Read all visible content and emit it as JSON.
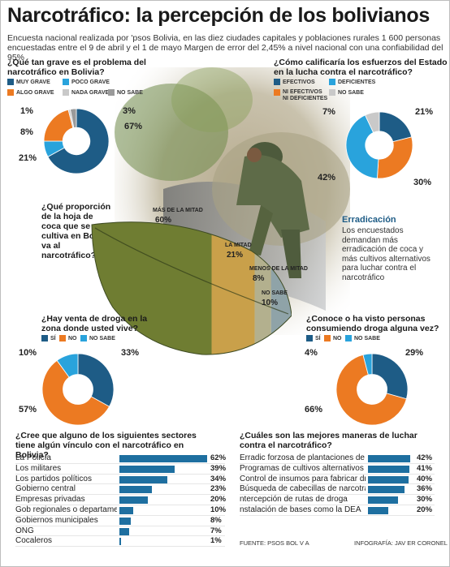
{
  "header": {
    "title": "Narcotráfico: la percepción de los bolivianos",
    "subtitle": "Encuesta nacional realizada por 'psos Bolivia, en las diez ciudades capitales y poblaciones rurales 1 600 personas encuestadas entre el 9 de abril y el 1 de mayo  Margen de error del 2,45% a nivel nacional con una confiabilidad del 95%"
  },
  "colors": {
    "dark_blue": "#1e5c86",
    "light_blue": "#29a3dc",
    "orange": "#ec7a22",
    "light_gray": "#c9c9c9",
    "gray": "#9a9a9a",
    "bar_blue": "#1e6fa0"
  },
  "pie_gravity": {
    "question": "¿Qué tan grave es el problema del narcotráfico en Bolivia?",
    "legend": [
      "MUY GRAVE",
      "POCO GRAVE",
      "ALGO GRAVE",
      "NADA GRAVE",
      "NO SABE"
    ],
    "labels": [
      "67%",
      "8%",
      "21%",
      "1%",
      "3%"
    ]
  },
  "pie_efforts": {
    "question": "¿Cómo calificaría los esfuerzos del Estado en la lucha contra el narcotráfico?",
    "legend": [
      "EFECTIVOS",
      "DEFICIENTES",
      "NI EFECTIVOS NI DEFICIENTES",
      "NO SABE"
    ],
    "labels": [
      "21%",
      "42%",
      "30%",
      "7%"
    ]
  },
  "leaf": {
    "question": "¿Qué proporción de la hoja de coca que se cultiva en Bolivia va al narcotráfico?",
    "labels": [
      "MÁS DE LA MITAD",
      "LA MITAD",
      "MENOS DE LA MITAD",
      "NO SABE"
    ],
    "values_text": [
      "60%",
      "21%",
      "8%",
      "10%"
    ]
  },
  "erradicacion": {
    "title": "Erradicación",
    "body": "Los encuestados demandan más erradicación de coca y más cultivos alternativos para luchar contra el narcotráfico"
  },
  "pie_sale": {
    "question": "¿Hay venta de droga en la zona donde usted vive?",
    "legend": [
      "SÍ",
      "NO",
      "NO SABE"
    ],
    "labels": [
      "33%",
      "57%",
      "10%"
    ]
  },
  "pie_seen": {
    "question": "¿Conoce o ha visto personas consumiendo droga alguna vez?",
    "legend": [
      "SÍ",
      "NO",
      "NO SABE"
    ],
    "labels": [
      "29%",
      "66%",
      "4%"
    ]
  },
  "bars_sectors": {
    "question": "¿Cree que alguno de los siguientes sectores tiene algún vínculo con el narcotráfico en Bolivia?",
    "labels": [
      "La Policía",
      "Los militares",
      "Los partidos políticos",
      "Gobierno central",
      "Empresas privadas",
      "Gob regionales o departamentales",
      "Gobiernos municipales",
      "ONG",
      "Cocaleros"
    ],
    "values_text": [
      "62%",
      "39%",
      "34%",
      "23%",
      "20%",
      "10%",
      "8%",
      "7%",
      "1%"
    ]
  },
  "bars_ways": {
    "question": "¿Cuáles son las mejores maneras de luchar contra el narcotráfico?",
    "labels": [
      "Erradic forzosa de plantaciones de coca",
      "Programas de cultivos alternativos",
      "Control de insumos para fabricar droga",
      "Búsqueda de cabecillas de narcotráfico",
      "ntercepción de rutas de droga",
      "nstalación de bases como la DEA"
    ],
    "values_text": [
      "42%",
      "41%",
      "40%",
      "36%",
      "30%",
      "20%"
    ]
  },
  "footer": {
    "source": "FUENTE:  PSOS BOL V A",
    "infografia": "INFOGRAFÍA: JAV ER CORONEL"
  },
  "chart_data": [
    {
      "type": "pie",
      "title": "¿Qué tan grave es el problema del narcotráfico en Bolivia?",
      "categories": [
        "MUY GRAVE",
        "POCO GRAVE",
        "ALGO GRAVE",
        "NADA GRAVE",
        "NO SABE"
      ],
      "values": [
        67,
        8,
        21,
        1,
        3
      ]
    },
    {
      "type": "pie",
      "title": "¿Cómo calificaría los esfuerzos del Estado en la lucha contra el narcotráfico?",
      "categories": [
        "EFECTIVOS",
        "NI EFECTIVOS NI DEFICIENTES",
        "DEFICIENTES",
        "NO SABE"
      ],
      "values": [
        21,
        30,
        42,
        7
      ]
    },
    {
      "type": "bar",
      "title": "¿Qué proporción de la hoja de coca que se cultiva en Bolivia va al narcotráfico?",
      "categories": [
        "MÁS DE LA MITAD",
        "LA MITAD",
        "MENOS DE LA MITAD",
        "NO SABE"
      ],
      "values": [
        60,
        21,
        8,
        10
      ]
    },
    {
      "type": "pie",
      "title": "¿Hay venta de droga en la zona donde usted vive?",
      "categories": [
        "SÍ",
        "NO",
        "NO SABE"
      ],
      "values": [
        33,
        57,
        10
      ]
    },
    {
      "type": "pie",
      "title": "¿Conoce o ha visto personas consumiendo droga alguna vez?",
      "categories": [
        "SÍ",
        "NO",
        "NO SABE"
      ],
      "values": [
        29,
        66,
        4
      ]
    },
    {
      "type": "bar",
      "title": "¿Cree que alguno de los siguientes sectores tiene algún vínculo con el narcotráfico en Bolivia?",
      "categories": [
        "La Policía",
        "Los militares",
        "Los partidos políticos",
        "Gobierno central",
        "Empresas privadas",
        "Gob regionales o departamentales",
        "Gobiernos municipales",
        "ONG",
        "Cocaleros"
      ],
      "values": [
        62,
        39,
        34,
        23,
        20,
        10,
        8,
        7,
        1
      ]
    },
    {
      "type": "bar",
      "title": "¿Cuáles son las mejores maneras de luchar contra el narcotráfico?",
      "categories": [
        "Erradic forzosa de plantaciones de coca",
        "Programas de cultivos alternativos",
        "Control de insumos para fabricar droga",
        "Búsqueda de cabecillas de narcotráfico",
        "ntercepción de rutas de droga",
        "nstalación de bases como la DEA"
      ],
      "values": [
        42,
        41,
        40,
        36,
        30,
        20
      ]
    }
  ]
}
